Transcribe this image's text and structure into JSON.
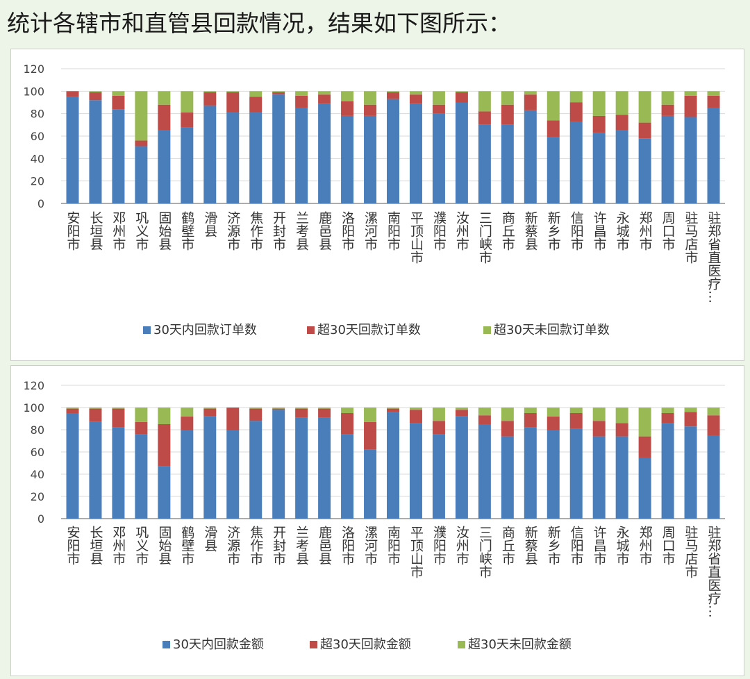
{
  "heading": "统计各辖市和直管县回款情况，结果如下图所示：",
  "colors": {
    "s1": "#4a7ebb",
    "s2": "#be4b48",
    "s3": "#98b954",
    "grid": "#d9d9d9",
    "axis": "#595959"
  },
  "chart_data": [
    {
      "type": "bar",
      "stacked": true,
      "title": "",
      "ylim": [
        0,
        120
      ],
      "yticks": [
        "0",
        "20",
        "40",
        "60",
        "80",
        "100",
        "120"
      ],
      "legend_position": "bottom",
      "categories": [
        "安阳市",
        "长垣县",
        "邓州市",
        "巩义市",
        "固始县",
        "鹤壁市",
        "滑县",
        "济源市",
        "焦作市",
        "开封市",
        "兰考县",
        "鹿邑县",
        "洛阳市",
        "漯河市",
        "南阳市",
        "平顶山市",
        "濮阳市",
        "汝州市",
        "三门峡市",
        "商丘市",
        "新蔡县",
        "新乡市",
        "信阳市",
        "许昌市",
        "永城市",
        "郑州市",
        "周口市",
        "驻马店市",
        "驻郑省直医疗…"
      ],
      "series": [
        {
          "name": "30天内回款订单数",
          "values": [
            95,
            92,
            84,
            51,
            65,
            68,
            87,
            81,
            81,
            97,
            85,
            89,
            78,
            78,
            93,
            89,
            80,
            90,
            70,
            70,
            83,
            59,
            73,
            63,
            65,
            58,
            78,
            77,
            85
          ]
        },
        {
          "name": "超30天回款订单数",
          "values": [
            5,
            7,
            12,
            5,
            23,
            13,
            12,
            18,
            14,
            2,
            11,
            8,
            13,
            10,
            6,
            8,
            8,
            9,
            12,
            18,
            14,
            15,
            17,
            15,
            14,
            14,
            10,
            19,
            11
          ]
        },
        {
          "name": "超30天未回款订单数",
          "values": [
            0,
            1,
            4,
            44,
            12,
            19,
            1,
            1,
            5,
            1,
            4,
            3,
            9,
            12,
            1,
            3,
            12,
            1,
            18,
            12,
            3,
            26,
            10,
            22,
            21,
            28,
            12,
            4,
            4
          ]
        }
      ]
    },
    {
      "type": "bar",
      "stacked": true,
      "title": "",
      "ylim": [
        0,
        120
      ],
      "yticks": [
        "0",
        "20",
        "40",
        "60",
        "80",
        "100",
        "120"
      ],
      "legend_position": "bottom",
      "categories": [
        "安阳市",
        "长垣县",
        "邓州市",
        "巩义市",
        "固始县",
        "鹤壁市",
        "滑县",
        "济源市",
        "焦作市",
        "开封市",
        "兰考县",
        "鹿邑县",
        "洛阳市",
        "漯河市",
        "南阳市",
        "平顶山市",
        "濮阳市",
        "汝州市",
        "三门峡市",
        "商丘市",
        "新蔡县",
        "新乡市",
        "信阳市",
        "许昌市",
        "永城市",
        "郑州市",
        "周口市",
        "驻马店市",
        "驻郑省直医疗…"
      ],
      "series": [
        {
          "name": "30天内回款金额",
          "values": [
            95,
            87,
            82,
            76,
            47,
            80,
            92,
            80,
            88,
            98,
            91,
            91,
            76,
            62,
            96,
            86,
            76,
            92,
            85,
            74,
            82,
            80,
            81,
            74,
            74,
            55,
            86,
            83,
            75
          ]
        },
        {
          "name": "超30天回款金额",
          "values": [
            4,
            12,
            17,
            11,
            38,
            12,
            7,
            20,
            11,
            1,
            8,
            8,
            19,
            25,
            3,
            12,
            12,
            6,
            8,
            14,
            13,
            12,
            14,
            14,
            12,
            19,
            9,
            13,
            18
          ]
        },
        {
          "name": "超30天未回款金额",
          "values": [
            1,
            1,
            1,
            13,
            15,
            8,
            1,
            0,
            1,
            1,
            1,
            1,
            5,
            13,
            1,
            2,
            12,
            2,
            7,
            12,
            5,
            8,
            5,
            12,
            14,
            26,
            5,
            4,
            7
          ]
        }
      ]
    }
  ]
}
